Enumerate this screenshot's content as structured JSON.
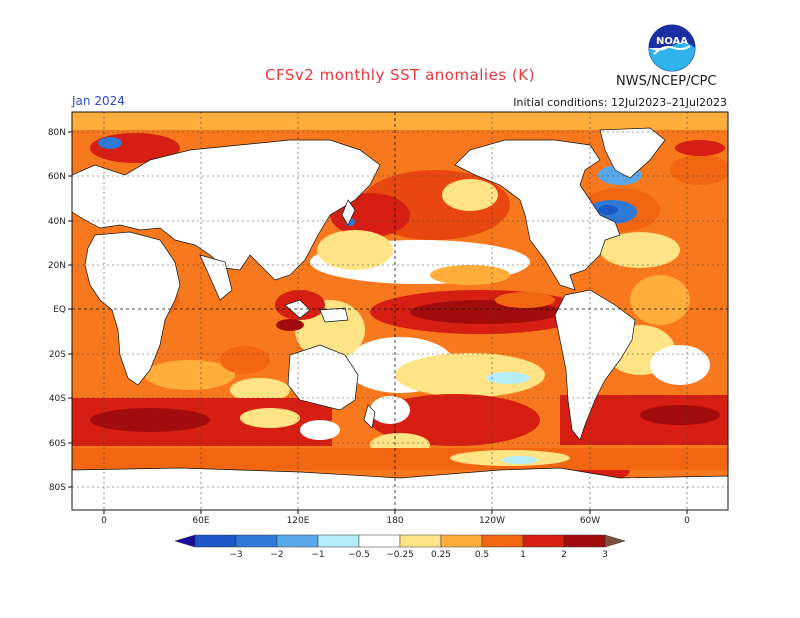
{
  "title": "CFSv2 monthly SST anomalies (K)",
  "agency": "NWS/NCEP/CPC",
  "logo_text": "NOAA",
  "valid_month": "Jan 2024",
  "initial_conditions": "Initial conditions: 12Jul2023–21Jul2023",
  "lat_labels": [
    "80N",
    "60N",
    "40N",
    "20N",
    "EQ",
    "20S",
    "40S",
    "60S",
    "80S"
  ],
  "lon_labels": [
    "0",
    "60E",
    "120E",
    "180",
    "120W",
    "60W",
    "0"
  ],
  "colorbar": {
    "labels": [
      "−3",
      "−2",
      "−1",
      "−0.5",
      "−0.25",
      "0.25",
      "0.5",
      "1",
      "2",
      "3"
    ],
    "colors": [
      "#1a0a9c",
      "#1d57c8",
      "#2f7ad9",
      "#5aa8ec",
      "#b4ecf8",
      "#ffffff",
      "#ffe486",
      "#ffad3b",
      "#f26511",
      "#d71e12",
      "#a30c0c",
      "#7f5040"
    ]
  },
  "colors": {
    "land": "#ffffff",
    "ocean_base": "#f7781d",
    "grid": "#222222"
  }
}
